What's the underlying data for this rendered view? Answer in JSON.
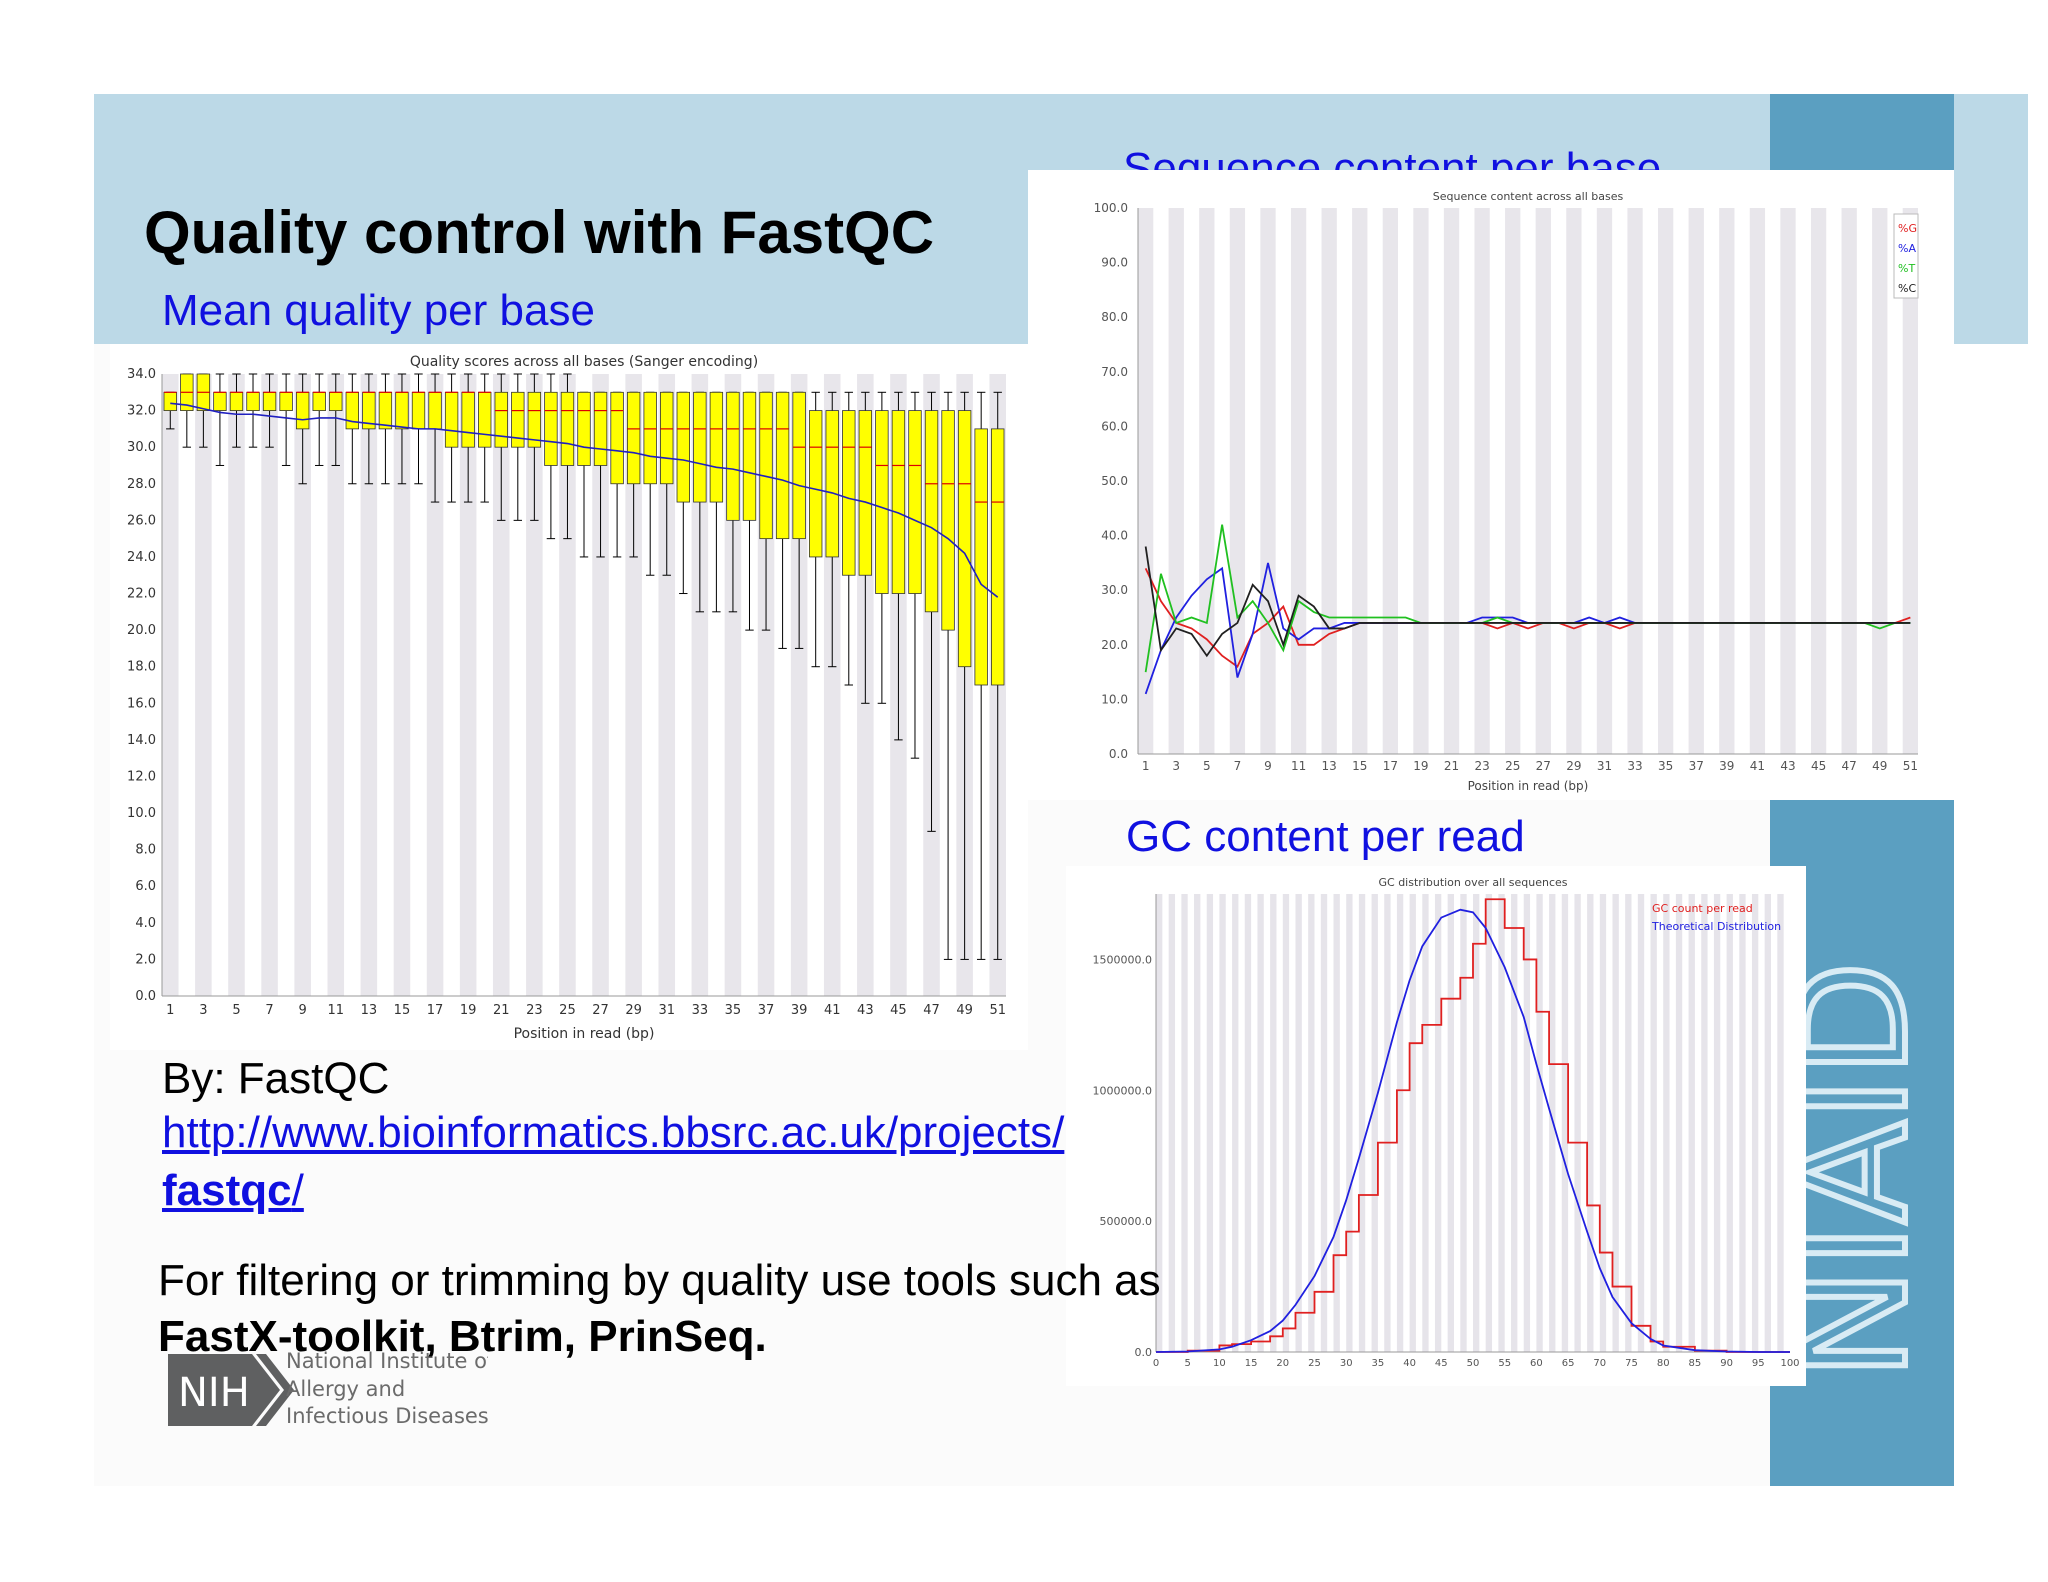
{
  "slide": {
    "title": "Quality control with FastQC",
    "section_mean_quality": "Mean quality per base",
    "section_sequence_content": "Sequence content per base",
    "section_gc_content": "GC content per read",
    "by_line": "By: FastQC",
    "link_line1": "http://www.bioinformatics.bbsrc.ac.uk/projects/",
    "link_line2_bold": "fastqc",
    "link_line2_rest": "/",
    "filter_line": "For filtering or trimming by quality use tools such as",
    "tools_line": "FastX-toolkit, Btrim, PrinSeq.",
    "side_logo_text": "NIAID",
    "nih_logo": {
      "badge": "NIH",
      "line1": "National Institute of",
      "line2": "Allergy and",
      "line3": "Infectious Diseases"
    },
    "colors": {
      "header_band": "#bcd9e7",
      "niaid_blue": "#5b9fc1",
      "section_title_blue": "#1010e0"
    }
  },
  "chart_data": [
    {
      "type": "box",
      "title": "Quality scores across all bases (Sanger encoding)",
      "xlabel": "Position in read (bp)",
      "ylabel": "",
      "ylim": [
        0,
        34
      ],
      "y_ticks": [
        "0.0",
        "2.0",
        "4.0",
        "6.0",
        "8.0",
        "10.0",
        "12.0",
        "14.0",
        "16.0",
        "18.0",
        "20.0",
        "22.0",
        "24.0",
        "26.0",
        "28.0",
        "30.0",
        "32.0",
        "34.0"
      ],
      "x_tick_labels": [
        "1",
        "3",
        "5",
        "7",
        "9",
        "11",
        "13",
        "15",
        "17",
        "19",
        "21",
        "23",
        "25",
        "27",
        "29",
        "31",
        "33",
        "35",
        "37",
        "39",
        "41",
        "43",
        "45",
        "47",
        "49",
        "51"
      ],
      "positions": [
        1,
        2,
        3,
        4,
        5,
        6,
        7,
        8,
        9,
        10,
        11,
        12,
        13,
        14,
        15,
        16,
        17,
        18,
        19,
        20,
        21,
        22,
        23,
        24,
        25,
        26,
        27,
        28,
        29,
        30,
        31,
        32,
        33,
        34,
        35,
        36,
        37,
        38,
        39,
        40,
        41,
        42,
        43,
        44,
        45,
        46,
        47,
        48,
        49,
        50,
        51
      ],
      "q1": [
        32,
        32,
        32,
        32,
        32,
        32,
        32,
        32,
        31,
        32,
        32,
        31,
        31,
        31,
        31,
        31,
        31,
        30,
        30,
        30,
        30,
        30,
        30,
        29,
        29,
        29,
        29,
        28,
        28,
        28,
        28,
        27,
        27,
        27,
        26,
        26,
        25,
        25,
        25,
        24,
        24,
        23,
        23,
        22,
        22,
        22,
        21,
        20,
        18,
        17,
        17
      ],
      "q3": [
        33,
        34,
        34,
        33,
        33,
        33,
        33,
        33,
        33,
        33,
        33,
        33,
        33,
        33,
        33,
        33,
        33,
        33,
        33,
        33,
        33,
        33,
        33,
        33,
        33,
        33,
        33,
        33,
        33,
        33,
        33,
        33,
        33,
        33,
        33,
        33,
        33,
        33,
        33,
        32,
        32,
        32,
        32,
        32,
        32,
        32,
        32,
        32,
        32,
        31,
        31
      ],
      "median": [
        33,
        33,
        33,
        33,
        33,
        33,
        33,
        33,
        33,
        33,
        33,
        33,
        33,
        33,
        33,
        33,
        33,
        33,
        33,
        33,
        32,
        32,
        32,
        32,
        32,
        32,
        32,
        32,
        31,
        31,
        31,
        31,
        31,
        31,
        31,
        31,
        31,
        31,
        30,
        30,
        30,
        30,
        30,
        29,
        29,
        29,
        28,
        28,
        28,
        27,
        27
      ],
      "whisker_low": [
        31,
        30,
        30,
        29,
        30,
        30,
        30,
        29,
        28,
        29,
        29,
        28,
        28,
        28,
        28,
        28,
        27,
        27,
        27,
        27,
        26,
        26,
        26,
        25,
        25,
        24,
        24,
        24,
        24,
        23,
        23,
        22,
        21,
        21,
        21,
        20,
        20,
        19,
        19,
        18,
        18,
        17,
        16,
        16,
        14,
        13,
        9,
        2,
        2,
        2,
        2
      ],
      "whisker_high": [
        33,
        34,
        34,
        34,
        34,
        34,
        34,
        34,
        34,
        34,
        34,
        34,
        34,
        34,
        34,
        34,
        34,
        34,
        34,
        34,
        34,
        34,
        34,
        34,
        34,
        33,
        33,
        33,
        33,
        33,
        33,
        33,
        33,
        33,
        33,
        33,
        33,
        33,
        33,
        33,
        33,
        33,
        33,
        33,
        33,
        33,
        33,
        33,
        33,
        33,
        33
      ],
      "mean": [
        32.4,
        32.3,
        32.1,
        31.9,
        31.8,
        31.8,
        31.7,
        31.6,
        31.5,
        31.6,
        31.6,
        31.4,
        31.3,
        31.2,
        31.1,
        31.0,
        31.0,
        30.9,
        30.8,
        30.7,
        30.6,
        30.5,
        30.4,
        30.3,
        30.2,
        30.0,
        29.9,
        29.8,
        29.7,
        29.5,
        29.4,
        29.3,
        29.1,
        28.9,
        28.8,
        28.6,
        28.4,
        28.2,
        27.9,
        27.7,
        27.5,
        27.2,
        27.0,
        26.7,
        26.4,
        26.0,
        25.6,
        25.0,
        24.2,
        22.5,
        21.8
      ],
      "colors": {
        "box": "#ffff00",
        "median": "#dd0000",
        "mean": "#2020c0",
        "stripe": "#e8e6eb"
      }
    },
    {
      "type": "line",
      "title": "Sequence content across all bases",
      "xlabel": "Position in read (bp)",
      "ylim": [
        0,
        100
      ],
      "y_ticks": [
        "0.0",
        "10.0",
        "20.0",
        "30.0",
        "40.0",
        "50.0",
        "60.0",
        "70.0",
        "80.0",
        "90.0",
        "100.0"
      ],
      "x_tick_labels": [
        "1",
        "3",
        "5",
        "7",
        "9",
        "11",
        "13",
        "15",
        "17",
        "19",
        "21",
        "23",
        "25",
        "27",
        "29",
        "31",
        "33",
        "35",
        "37",
        "39",
        "41",
        "43",
        "45",
        "47",
        "49",
        "51"
      ],
      "x": [
        1,
        2,
        3,
        4,
        5,
        6,
        7,
        8,
        9,
        10,
        11,
        12,
        13,
        14,
        15,
        16,
        17,
        18,
        19,
        20,
        21,
        22,
        23,
        24,
        25,
        26,
        27,
        28,
        29,
        30,
        31,
        32,
        33,
        34,
        35,
        36,
        37,
        38,
        39,
        40,
        41,
        42,
        43,
        44,
        45,
        46,
        47,
        48,
        49,
        50,
        51
      ],
      "series": [
        {
          "name": "%G",
          "color": "#e02020",
          "values": [
            34,
            28,
            24,
            23,
            21,
            18,
            16,
            22,
            24,
            27,
            20,
            20,
            22,
            23,
            24,
            24,
            24,
            24,
            24,
            24,
            24,
            24,
            24,
            23,
            24,
            23,
            24,
            24,
            23,
            24,
            24,
            23,
            24,
            24,
            24,
            24,
            24,
            24,
            24,
            24,
            24,
            24,
            24,
            24,
            24,
            24,
            24,
            24,
            24,
            24,
            25
          ]
        },
        {
          "name": "%A",
          "color": "#2020e0",
          "values": [
            11,
            19,
            25,
            29,
            32,
            34,
            14,
            22,
            35,
            23,
            21,
            23,
            23,
            24,
            24,
            24,
            24,
            24,
            24,
            24,
            24,
            24,
            25,
            25,
            25,
            24,
            24,
            24,
            24,
            25,
            24,
            25,
            24,
            24,
            24,
            24,
            24,
            24,
            24,
            24,
            24,
            24,
            24,
            24,
            24,
            24,
            24,
            24,
            24,
            24,
            24
          ]
        },
        {
          "name": "%T",
          "color": "#20c020",
          "values": [
            15,
            33,
            24,
            25,
            24,
            42,
            25,
            28,
            24,
            19,
            28,
            26,
            25,
            25,
            25,
            25,
            25,
            25,
            24,
            24,
            24,
            24,
            24,
            25,
            24,
            24,
            24,
            24,
            24,
            24,
            24,
            24,
            24,
            24,
            24,
            24,
            24,
            24,
            24,
            24,
            24,
            24,
            24,
            24,
            24,
            24,
            24,
            24,
            23,
            24,
            24
          ]
        },
        {
          "name": "%C",
          "color": "#202020",
          "values": [
            38,
            19,
            23,
            22,
            18,
            22,
            24,
            31,
            28,
            20,
            29,
            27,
            23,
            23,
            24,
            24,
            24,
            24,
            24,
            24,
            24,
            24,
            24,
            24,
            24,
            24,
            24,
            24,
            24,
            24,
            24,
            24,
            24,
            24,
            24,
            24,
            24,
            24,
            24,
            24,
            24,
            24,
            24,
            24,
            24,
            24,
            24,
            24,
            24,
            24,
            24
          ]
        }
      ],
      "legend": "top-right"
    },
    {
      "type": "line",
      "title": "GC distribution over all sequences",
      "xlabel": "",
      "ylim": [
        0,
        1750000
      ],
      "y_ticks": [
        "0.0",
        "500000.0",
        "1000000.0",
        "1500000.0"
      ],
      "x_tick_labels": [
        "0",
        "5",
        "10",
        "15",
        "20",
        "25",
        "30",
        "35",
        "40",
        "45",
        "50",
        "55",
        "60",
        "65",
        "70",
        "75",
        "80",
        "85",
        "90",
        "95",
        "100"
      ],
      "x": [
        0,
        5,
        10,
        12,
        15,
        18,
        20,
        22,
        25,
        28,
        30,
        32,
        35,
        38,
        40,
        42,
        45,
        48,
        50,
        52,
        55,
        58,
        60,
        62,
        65,
        68,
        70,
        72,
        75,
        78,
        80,
        85,
        90,
        95,
        100
      ],
      "series": [
        {
          "name": "GC count per read",
          "color": "#e02020",
          "values": [
            0,
            5000,
            25000,
            30000,
            40000,
            60000,
            90000,
            150000,
            230000,
            370000,
            460000,
            600000,
            800000,
            1000000,
            1180000,
            1250000,
            1350000,
            1430000,
            1560000,
            1730000,
            1620000,
            1500000,
            1300000,
            1100000,
            800000,
            560000,
            380000,
            250000,
            100000,
            40000,
            20000,
            5000,
            0,
            0,
            0
          ]
        },
        {
          "name": "Theoretical Distribution",
          "color": "#2020e0",
          "values": [
            0,
            2000,
            10000,
            20000,
            45000,
            80000,
            120000,
            180000,
            290000,
            440000,
            580000,
            740000,
            990000,
            1260000,
            1420000,
            1550000,
            1660000,
            1690000,
            1680000,
            1620000,
            1470000,
            1280000,
            1100000,
            930000,
            680000,
            460000,
            320000,
            210000,
            110000,
            50000,
            25000,
            7000,
            2000,
            0,
            0
          ]
        }
      ],
      "legend": "top-right"
    }
  ]
}
